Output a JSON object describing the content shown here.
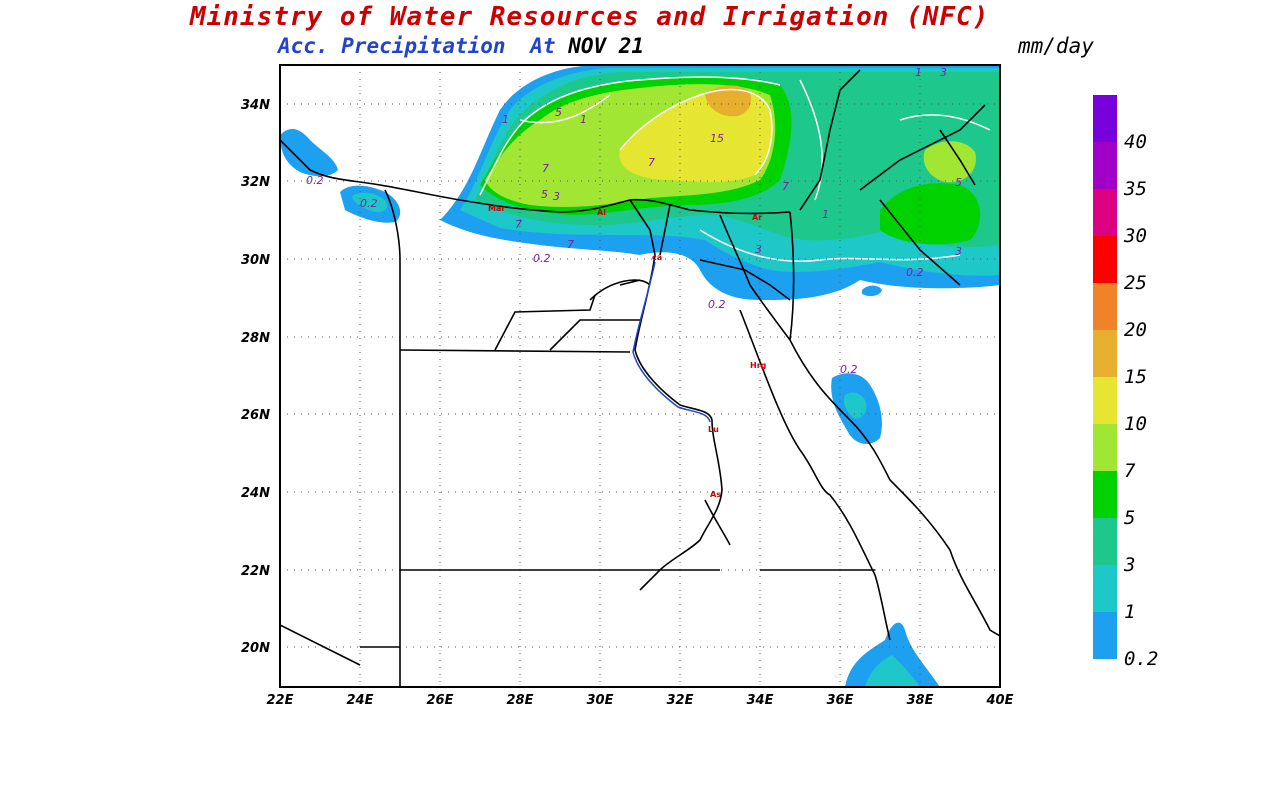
{
  "header": {
    "title": "Ministry of Water Resources and Irrigation (NFC)",
    "title_color": "#cc0000",
    "subtitle_field": "Acc. Precipitation",
    "subtitle_at": "At",
    "subtitle_date": "NOV 21",
    "subtitle_color": "#2244cc",
    "unit": "mm/day"
  },
  "map": {
    "lon_range": [
      22,
      40
    ],
    "lat_range": [
      19,
      35
    ],
    "grid": "dotted",
    "x_ticks": [
      "22E",
      "24E",
      "26E",
      "28E",
      "30E",
      "32E",
      "34E",
      "36E",
      "38E",
      "40E"
    ],
    "y_ticks": [
      "20N",
      "22N",
      "24N",
      "26N",
      "28N",
      "30N",
      "32N",
      "34N"
    ],
    "cities": [
      "Mar",
      "Al",
      "ca",
      "Ar",
      "Hrg",
      "Lu",
      "As"
    ],
    "contour_labels": [
      "0.2",
      "0.2",
      "0.2",
      "0.2",
      "0.2",
      "0.2",
      "1",
      "1",
      "1",
      "1",
      "3",
      "3",
      "3",
      "3",
      "5",
      "5",
      "5",
      "7",
      "7",
      "7",
      "7",
      "7",
      "15"
    ]
  },
  "legend": {
    "levels": [
      "0.2",
      "1",
      "3",
      "5",
      "7",
      "10",
      "15",
      "20",
      "25",
      "30",
      "35",
      "40"
    ],
    "colors": [
      "#1ea0f0",
      "#1ec8c8",
      "#1ec88c",
      "#00d200",
      "#a0e632",
      "#e6e632",
      "#e6af2d",
      "#f08228",
      "#fa0000",
      "#dc0082",
      "#a000c8",
      "#7800dc"
    ]
  }
}
